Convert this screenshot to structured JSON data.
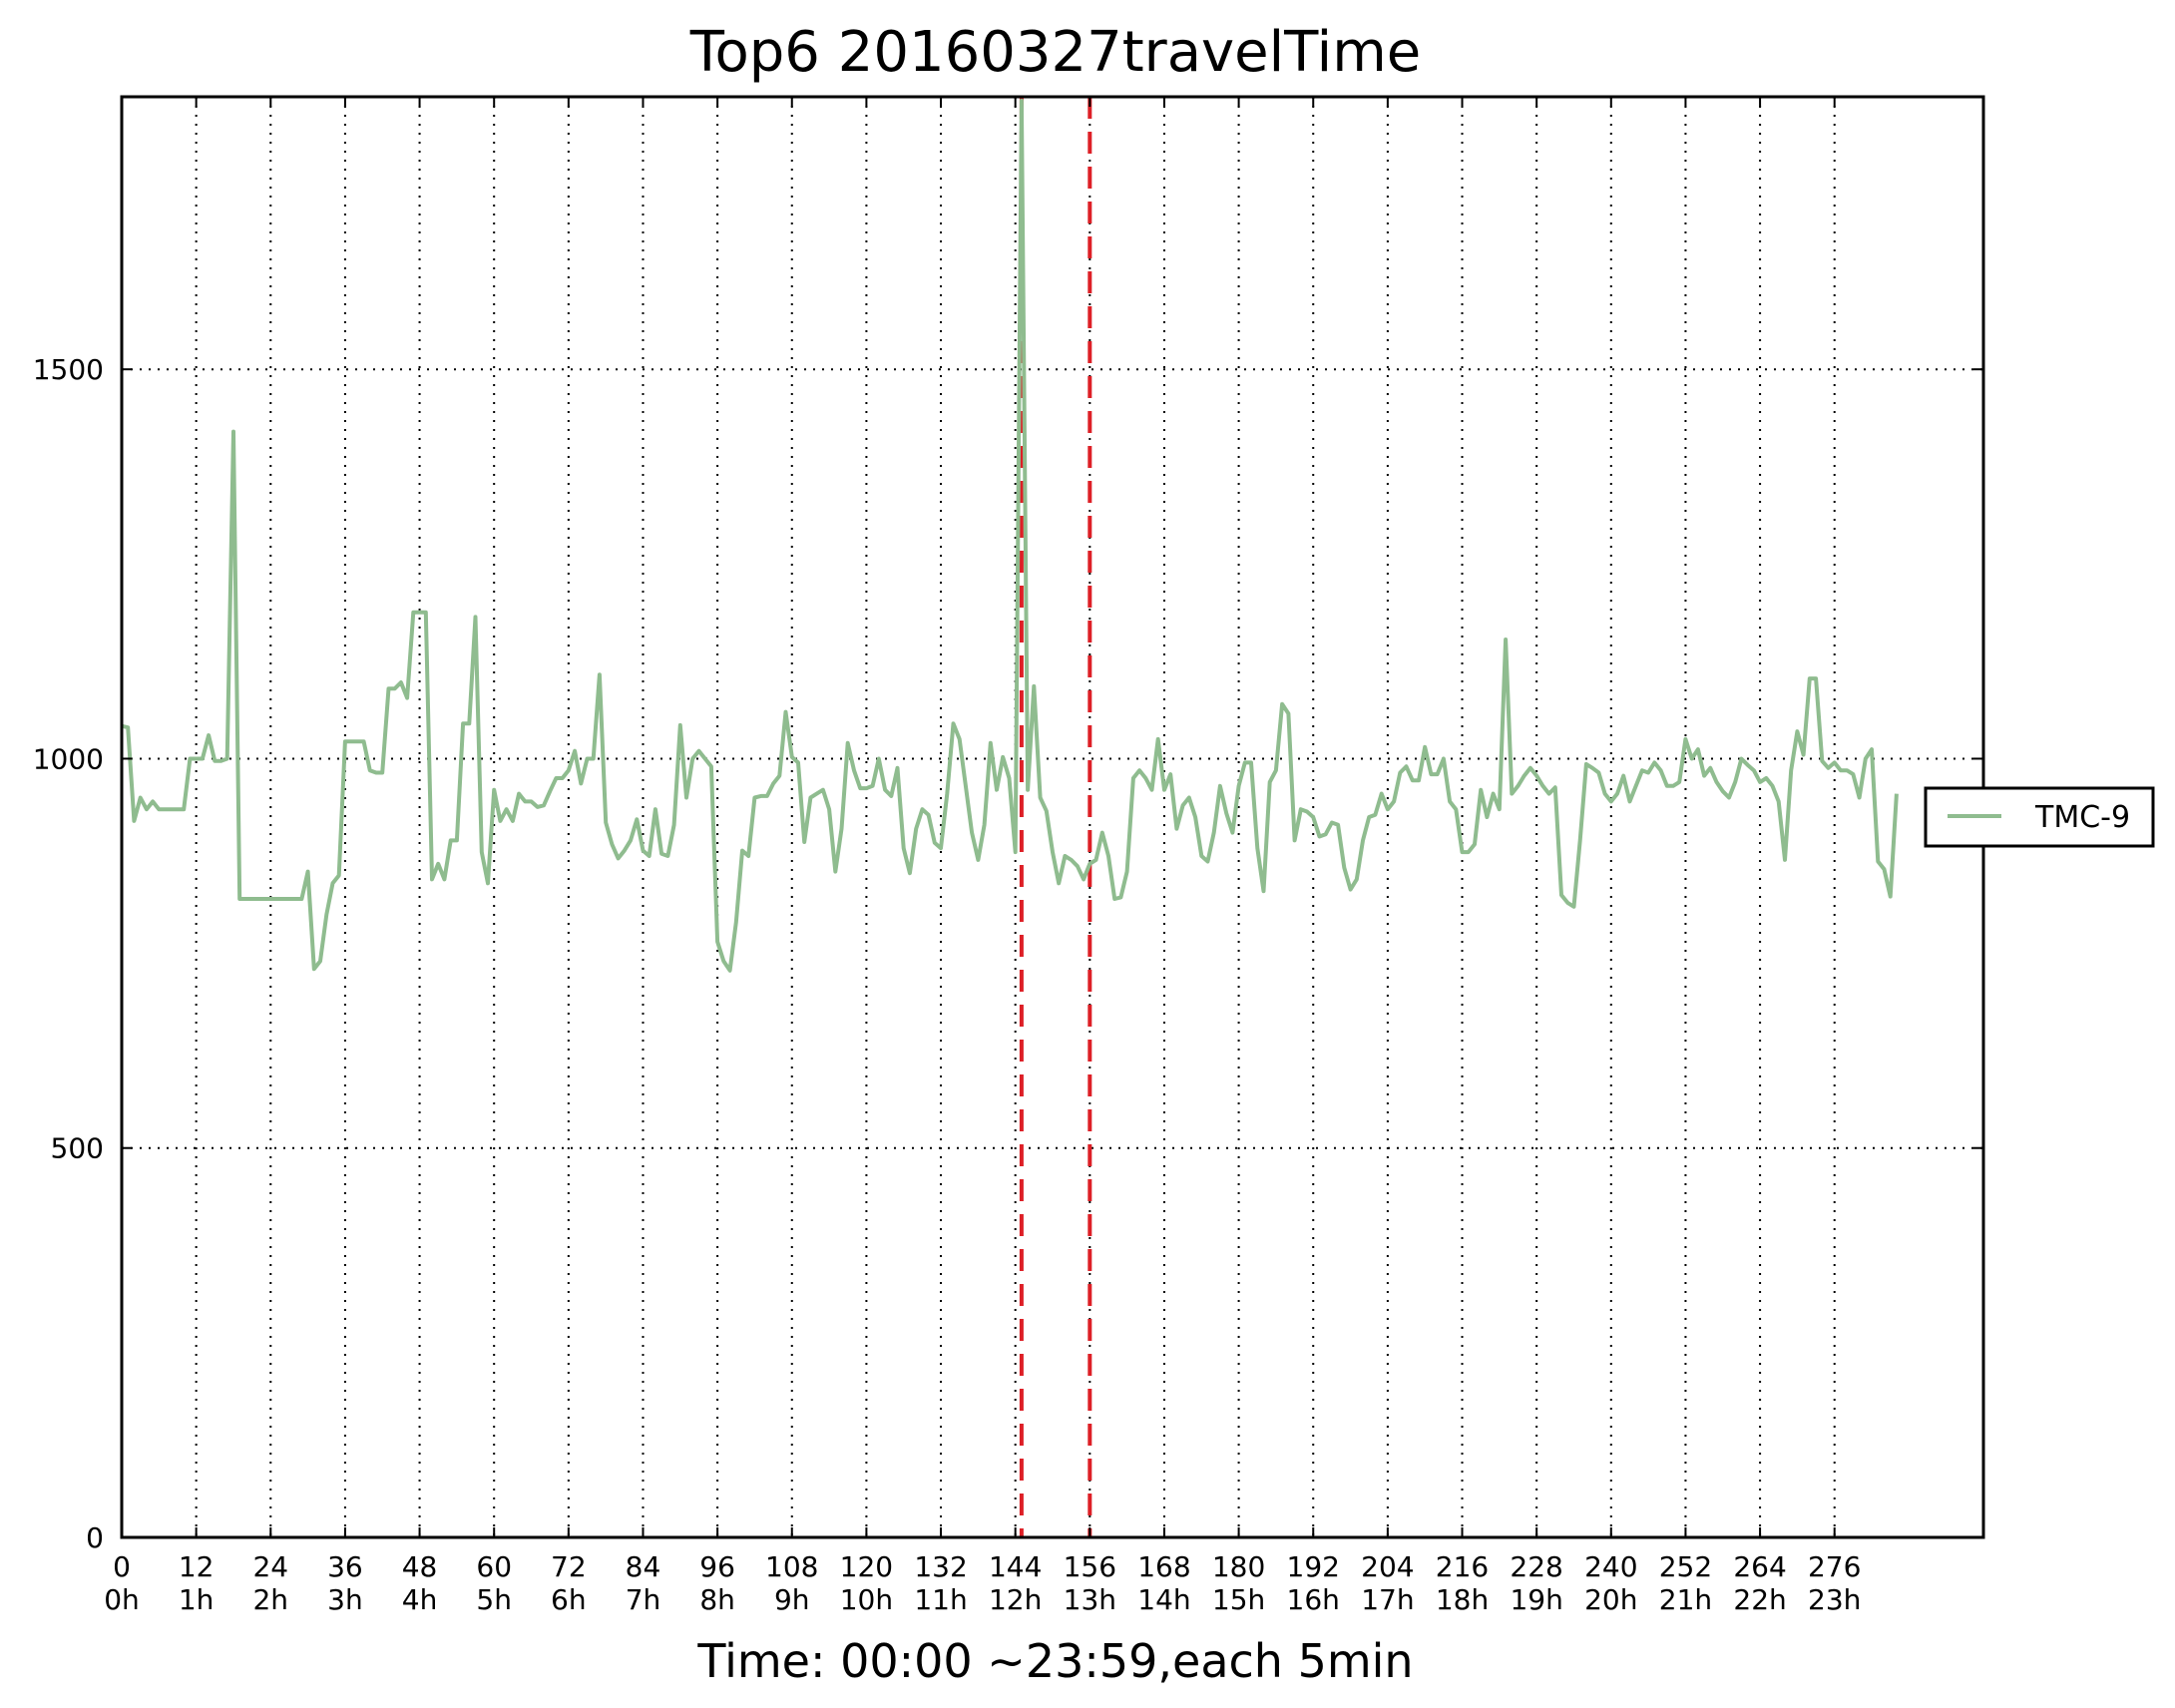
{
  "chart_data": {
    "type": "line",
    "title": "Top6 20160327travelTime",
    "xlabel": "Time: 00:00 ~23:59,each 5min",
    "ylabel": "",
    "xlim": [
      0,
      300
    ],
    "ylim": [
      0,
      1850
    ],
    "xticks": [
      0,
      12,
      24,
      36,
      48,
      60,
      72,
      84,
      96,
      108,
      120,
      132,
      144,
      156,
      168,
      180,
      192,
      204,
      216,
      228,
      240,
      252,
      264,
      276
    ],
    "xtick_labels": [
      "0",
      "12",
      "24",
      "36",
      "48",
      "60",
      "72",
      "84",
      "96",
      "108",
      "120",
      "132",
      "144",
      "156",
      "168",
      "180",
      "192",
      "204",
      "216",
      "228",
      "240",
      "252",
      "264",
      "276"
    ],
    "xtick_sublabels": [
      "0h",
      "1h",
      "2h",
      "3h",
      "4h",
      "5h",
      "6h",
      "7h",
      "8h",
      "9h",
      "10h",
      "11h",
      "12h",
      "13h",
      "14h",
      "15h",
      "16h",
      "17h",
      "18h",
      "19h",
      "20h",
      "21h",
      "22h",
      "23h"
    ],
    "yticks": [
      0,
      500,
      1000,
      1500
    ],
    "ytick_labels": [
      "0",
      "500",
      "1000",
      "1500"
    ],
    "grid": true,
    "grid_style": "dotted",
    "legend_position": "right-outside",
    "vlines": [
      {
        "x": 145,
        "color": "#dd1f26",
        "style": "dashed"
      },
      {
        "x": 156,
        "color": "#dd1f26",
        "style": "dashed"
      }
    ],
    "series": [
      {
        "name": "TMC-9",
        "color": "#8fbc8f",
        "values": [
          1042,
          1040,
          920,
          950,
          935,
          945,
          935,
          935,
          935,
          935,
          935,
          1000,
          1000,
          1000,
          1030,
          997,
          997,
          1000,
          1420,
          820,
          820,
          820,
          820,
          820,
          820,
          820,
          820,
          820,
          820,
          820,
          855,
          730,
          740,
          800,
          840,
          850,
          1022,
          1022,
          1022,
          1022,
          985,
          982,
          982,
          1090,
          1090,
          1098,
          1078,
          1188,
          1188,
          1188,
          845,
          865,
          845,
          895,
          895,
          1045,
          1045,
          1182,
          880,
          840,
          960,
          920,
          935,
          920,
          955,
          945,
          945,
          938,
          940,
          958,
          975,
          975,
          985,
          1010,
          968,
          1000,
          1000,
          1108,
          918,
          890,
          872,
          882,
          895,
          922,
          882,
          875,
          935,
          878,
          875,
          915,
          1043,
          950,
          1000,
          1010,
          1000,
          990,
          765,
          740,
          728,
          790,
          882,
          875,
          950,
          952,
          952,
          968,
          978,
          1060,
          1002,
          995,
          893,
          950,
          955,
          960,
          935,
          855,
          910,
          1020,
          985,
          962,
          962,
          965,
          1000,
          960,
          952,
          988,
          885,
          853,
          910,
          935,
          928,
          892,
          885,
          955,
          1045,
          1025,
          965,
          905,
          870,
          915,
          1020,
          960,
          1002,
          975,
          880,
          1845,
          960,
          1093,
          950,
          933,
          880,
          840,
          875,
          870,
          862,
          845,
          865,
          870,
          905,
          875,
          820,
          822,
          855,
          975,
          985,
          975,
          960,
          1025,
          960,
          980,
          910,
          940,
          950,
          925,
          875,
          868,
          905,
          965,
          930,
          905,
          965,
          995,
          995,
          885,
          830,
          970,
          985,
          1070,
          1058,
          895,
          935,
          932,
          925,
          900,
          903,
          918,
          915,
          860,
          832,
          845,
          895,
          925,
          928,
          955,
          935,
          945,
          982,
          990,
          972,
          972,
          1015,
          980,
          980,
          1000,
          945,
          935,
          880,
          880,
          890,
          960,
          925,
          955,
          935,
          1153,
          955,
          965,
          978,
          988,
          978,
          965,
          955,
          963,
          825,
          815,
          810,
          895,
          993,
          988,
          982,
          955,
          945,
          955,
          978,
          945,
          965,
          985,
          982,
          995,
          985,
          965,
          965,
          970,
          1025,
          1000,
          1012,
          978,
          988,
          970,
          958,
          950,
          970,
          1000,
          992,
          985,
          970,
          975,
          965,
          945,
          870,
          985,
          1035,
          1005,
          1103,
          1103,
          997,
          988,
          995,
          985,
          985,
          980,
          950,
          1000,
          1012,
          868,
          858,
          823,
          955
        ]
      }
    ]
  }
}
